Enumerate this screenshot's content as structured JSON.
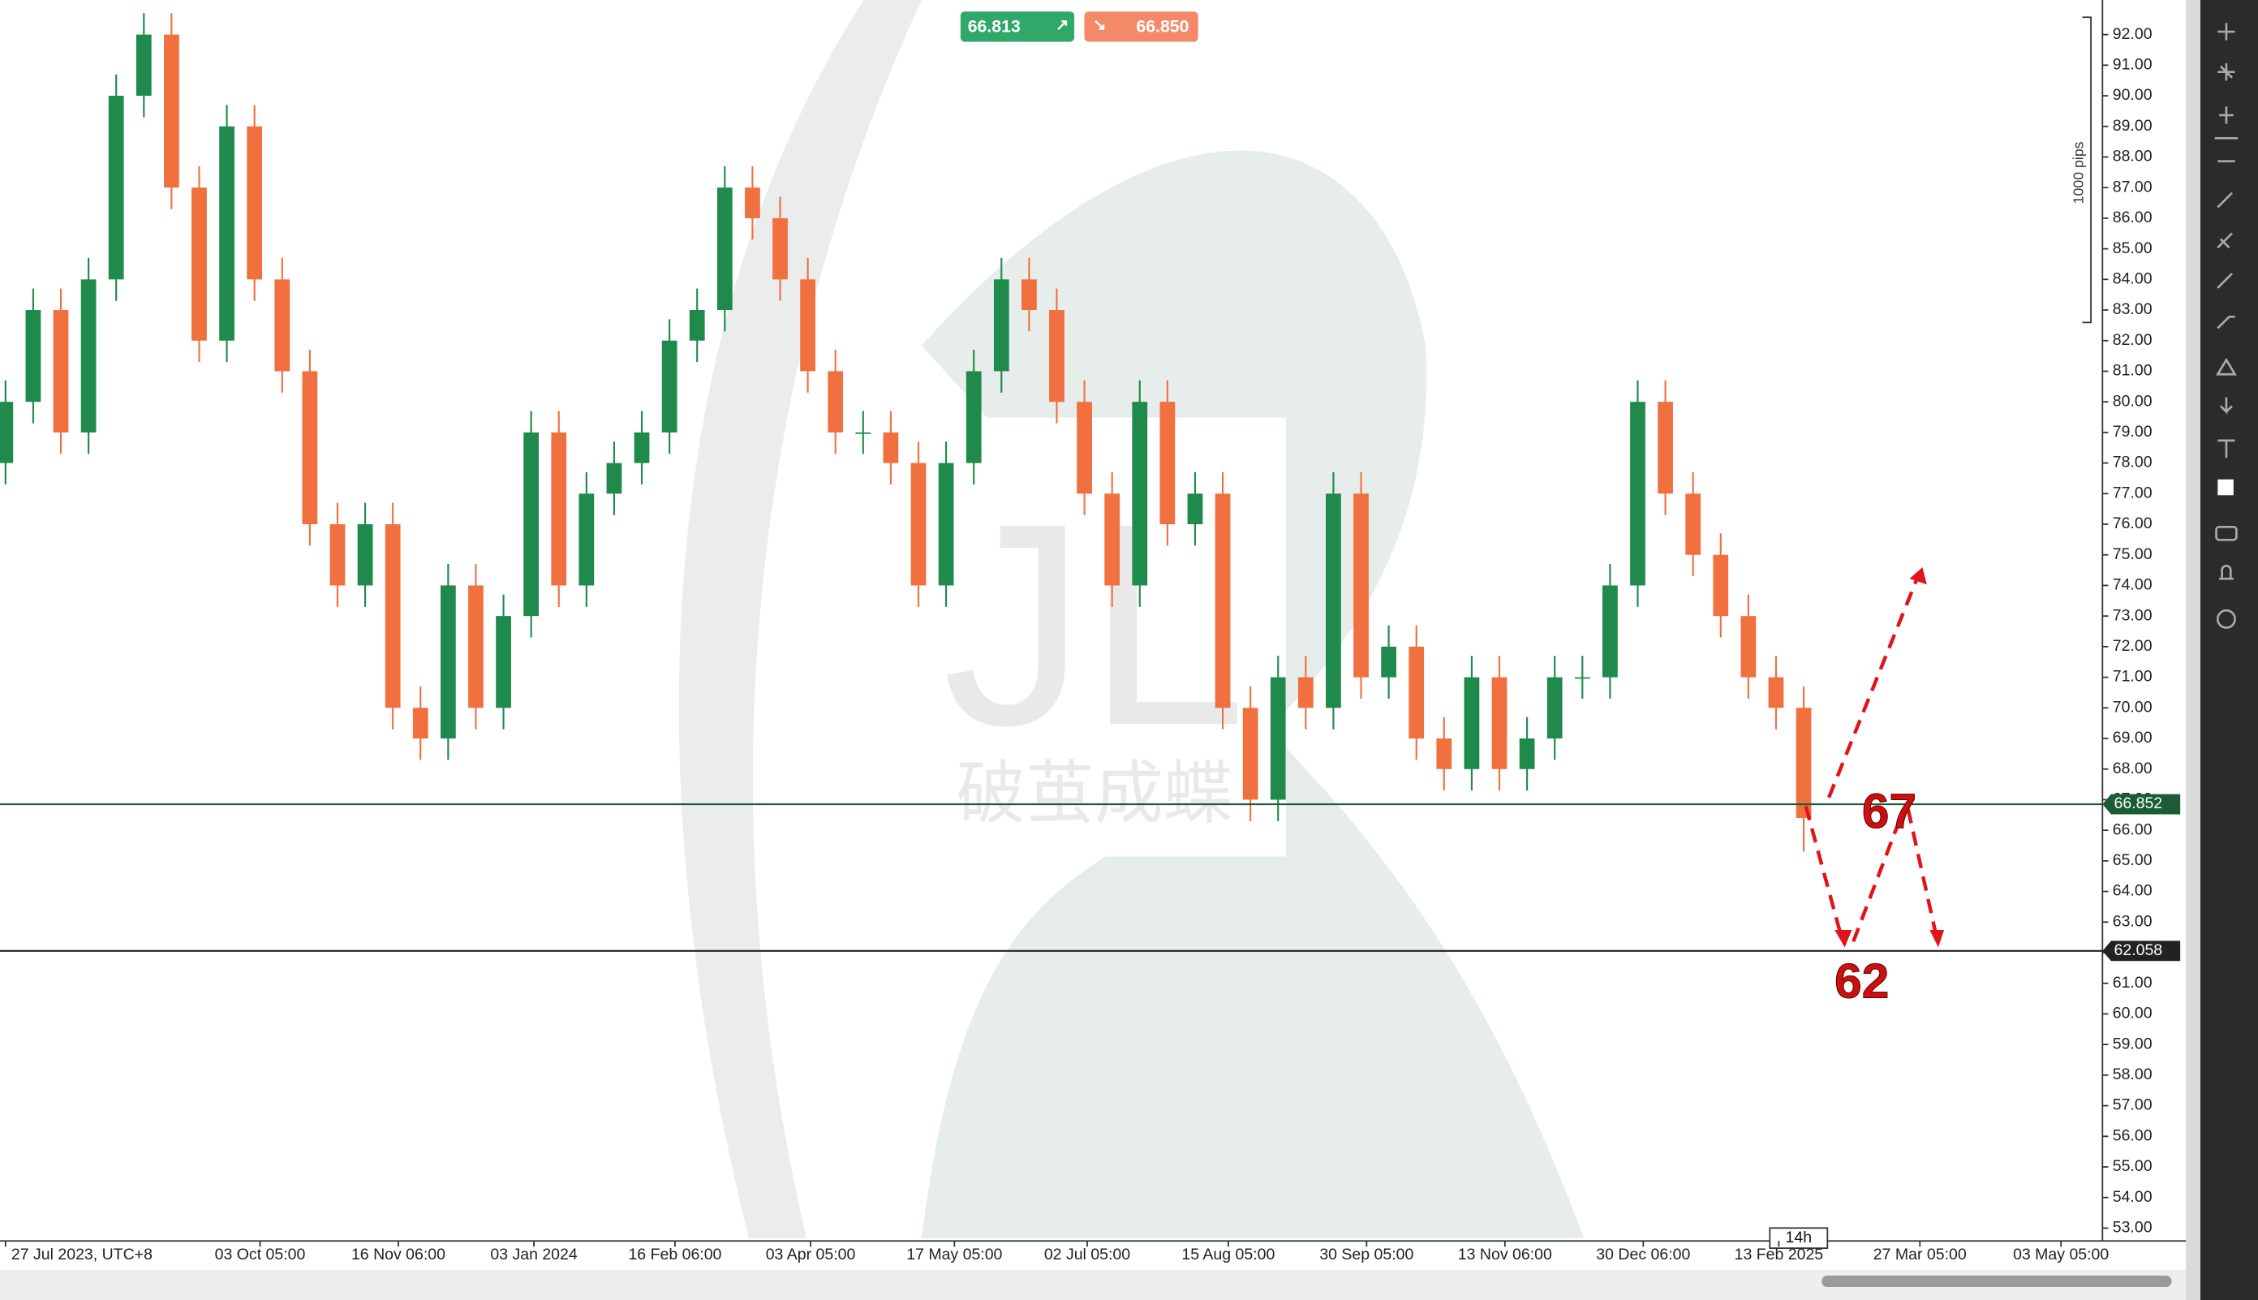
{
  "chart_data": {
    "type": "candlestick",
    "categories": [
      null,
      null,
      null,
      null,
      null,
      null,
      null,
      null,
      null,
      null,
      null,
      null,
      null,
      null,
      null,
      null,
      null,
      null,
      null,
      null,
      null,
      null,
      null,
      null,
      null,
      null,
      null,
      null,
      null,
      null,
      null,
      null,
      null,
      null,
      null,
      null,
      null,
      null,
      null,
      null,
      null,
      null,
      null,
      null,
      null,
      null,
      null,
      null,
      null,
      null,
      null,
      null,
      null,
      null,
      null,
      null,
      null,
      null,
      null,
      null,
      null,
      null,
      null,
      null,
      null,
      null
    ],
    "open": [
      78,
      80,
      83,
      79,
      84,
      90,
      92,
      87,
      82,
      89,
      84,
      81,
      76,
      74,
      76,
      70,
      69,
      74,
      70,
      73,
      79,
      74,
      77,
      78,
      79,
      82,
      83,
      87,
      86,
      84,
      81,
      79,
      79,
      78,
      74,
      78,
      81,
      84,
      83,
      80,
      77,
      74,
      80,
      76,
      77,
      70,
      67,
      71,
      70,
      77,
      71,
      72,
      69,
      68,
      71,
      68,
      69,
      71,
      71,
      74,
      80,
      77,
      75,
      73,
      71,
      70
    ],
    "high": [
      80.7,
      83.7,
      83.7,
      84.7,
      90.7,
      92.7,
      92.7,
      87.7,
      89.7,
      89.7,
      84.7,
      81.7,
      76.7,
      76.7,
      76.7,
      70.7,
      74.7,
      74.7,
      73.7,
      79.7,
      79.7,
      77.7,
      78.7,
      79.7,
      82.7,
      83.7,
      87.7,
      87.7,
      86.7,
      84.7,
      81.7,
      79.7,
      79.7,
      78.7,
      78.7,
      81.7,
      84.7,
      84.7,
      83.7,
      80.7,
      77.7,
      80.7,
      80.7,
      77.7,
      77.7,
      70.7,
      71.7,
      71.7,
      77.7,
      77.7,
      72.7,
      72.7,
      69.7,
      71.7,
      71.7,
      69.7,
      71.7,
      71.7,
      74.7,
      80.7,
      80.7,
      77.7,
      75.7,
      73.7,
      71.7,
      70.7
    ],
    "low": [
      77.3,
      79.3,
      78.3,
      78.3,
      83.3,
      89.3,
      86.3,
      81.3,
      81.3,
      83.3,
      80.3,
      75.3,
      73.3,
      73.3,
      69.3,
      68.3,
      68.3,
      69.3,
      69.3,
      72.3,
      73.3,
      73.3,
      76.3,
      77.3,
      78.3,
      81.3,
      82.3,
      85.3,
      83.3,
      80.3,
      78.3,
      78.3,
      77.3,
      73.3,
      73.3,
      77.3,
      80.3,
      82.3,
      79.3,
      76.3,
      73.3,
      73.3,
      75.3,
      75.3,
      69.3,
      66.3,
      66.3,
      69.3,
      69.3,
      70.3,
      70.3,
      68.3,
      67.3,
      67.3,
      67.3,
      67.3,
      68.3,
      70.3,
      70.3,
      73.3,
      76.3,
      74.3,
      72.3,
      70.3,
      69.3,
      65.3
    ],
    "close": [
      80,
      83,
      79,
      84,
      90,
      92,
      87,
      82,
      89,
      84,
      81,
      76,
      74,
      76,
      70,
      69,
      74,
      70,
      73,
      79,
      74,
      77,
      78,
      79,
      82,
      83,
      87,
      86,
      84,
      81,
      79,
      79,
      78,
      74,
      78,
      81,
      84,
      83,
      80,
      77,
      74,
      80,
      76,
      77,
      70,
      67,
      71,
      70,
      77,
      71,
      72,
      69,
      68,
      71,
      68,
      69,
      71,
      71,
      74,
      80,
      77,
      75,
      73,
      71,
      70,
      66.4
    ],
    "up_color": "#1f8a4c",
    "down_color": "#f0703f",
    "xlim": [
      -0.2,
      75.8
    ],
    "xticks": [
      {
        "value": 0,
        "label": "27 Jul 2023, UTC+8"
      },
      {
        "value": 9.2,
        "label": "03 Oct 05:00"
      },
      {
        "value": 14.2,
        "label": "16 Nov 06:00"
      },
      {
        "value": 19.1,
        "label": "03 Jan 2024"
      },
      {
        "value": 24.2,
        "label": "16 Feb 06:00"
      },
      {
        "value": 29.1,
        "label": "03 Apr 05:00"
      },
      {
        "value": 34.3,
        "label": "17 May 05:00"
      },
      {
        "value": 39.1,
        "label": "02 Jul 05:00"
      },
      {
        "value": 44.2,
        "label": "15 Aug 05:00"
      },
      {
        "value": 49.2,
        "label": "30 Sep 05:00"
      },
      {
        "value": 54.2,
        "label": "13 Nov 06:00"
      },
      {
        "value": 59.2,
        "label": "30 Dec 06:00"
      },
      {
        "value": 64.1,
        "label": "13 Feb 2025"
      },
      {
        "value": 69.2,
        "label": "27 Mar 05:00"
      },
      {
        "value": 74.3,
        "label": "03 May 05:00"
      }
    ],
    "ylim": [
      52.58,
      93.13
    ],
    "yticks": [
      {
        "value": 53,
        "label": "53.00"
      },
      {
        "value": 54,
        "label": "54.00"
      },
      {
        "value": 55,
        "label": "55.00"
      },
      {
        "value": 56,
        "label": "56.00"
      },
      {
        "value": 57,
        "label": "57.00"
      },
      {
        "value": 58,
        "label": "58.00"
      },
      {
        "value": 59,
        "label": "59.00"
      },
      {
        "value": 60,
        "label": "60.00"
      },
      {
        "value": 61,
        "label": "61.00"
      },
      {
        "value": 62,
        "label": "62.00"
      },
      {
        "value": 63,
        "label": "63.00"
      },
      {
        "value": 64,
        "label": "64.00"
      },
      {
        "value": 65,
        "label": "65.00"
      },
      {
        "value": 66,
        "label": "66.00"
      },
      {
        "value": 67,
        "label": "67.00"
      },
      {
        "value": 68,
        "label": "68.00"
      },
      {
        "value": 69,
        "label": "69.00"
      },
      {
        "value": 70,
        "label": "70.00"
      },
      {
        "value": 71,
        "label": "71.00"
      },
      {
        "value": 72,
        "label": "72.00"
      },
      {
        "value": 73,
        "label": "73.00"
      },
      {
        "value": 74,
        "label": "74.00"
      },
      {
        "value": 75,
        "label": "75.00"
      },
      {
        "value": 76,
        "label": "76.00"
      },
      {
        "value": 77,
        "label": "77.00"
      },
      {
        "value": 78,
        "label": "78.00"
      },
      {
        "value": 79,
        "label": "79.00"
      },
      {
        "value": 80,
        "label": "80.00"
      },
      {
        "value": 81,
        "label": "81.00"
      },
      {
        "value": 82,
        "label": "82.00"
      },
      {
        "value": 83,
        "label": "83.00"
      },
      {
        "value": 84,
        "label": "84.00"
      },
      {
        "value": 85,
        "label": "85.00"
      },
      {
        "value": 86,
        "label": "86.00"
      },
      {
        "value": 87,
        "label": "87.00"
      },
      {
        "value": 88,
        "label": "88.00"
      },
      {
        "value": 89,
        "label": "89.00"
      },
      {
        "value": 90,
        "label": "90.00"
      },
      {
        "value": 91,
        "label": "91.00"
      },
      {
        "value": 92,
        "label": "92.00"
      }
    ],
    "levels": [
      66.852,
      62.058
    ],
    "level_colors": [
      "#1a5c34",
      "#222222"
    ],
    "annotations": [
      "67",
      "62"
    ],
    "bid": "66.813",
    "ask": "66.850",
    "scale_label": "1000 pips",
    "time_label": "14h"
  }
}
